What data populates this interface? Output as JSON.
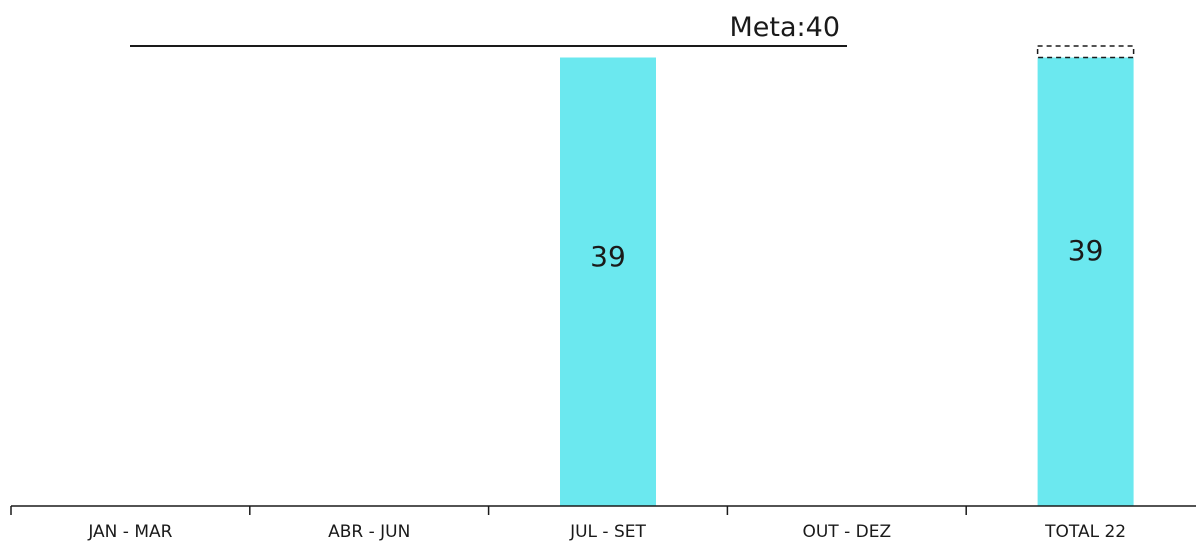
{
  "chart_data": {
    "type": "bar",
    "categories": [
      "JAN - MAR",
      "ABR - JUN",
      "JUL - SET",
      "OUT - DEZ",
      "TOTAL 22"
    ],
    "values": [
      null,
      null,
      39,
      null,
      39
    ],
    "value_labels": [
      "",
      "",
      "39",
      "",
      "39"
    ],
    "target": {
      "label": "Meta:40",
      "value": 40
    },
    "total_target_gap": {
      "category": "TOTAL 22",
      "from": 39,
      "to": 40,
      "style": "dashed"
    },
    "ylim": [
      0,
      40
    ],
    "grid": false,
    "legend": "none",
    "colors": {
      "bar": "#6be8ef",
      "axis": "#1a1a1a",
      "target_line": "#1a1a1a"
    }
  }
}
